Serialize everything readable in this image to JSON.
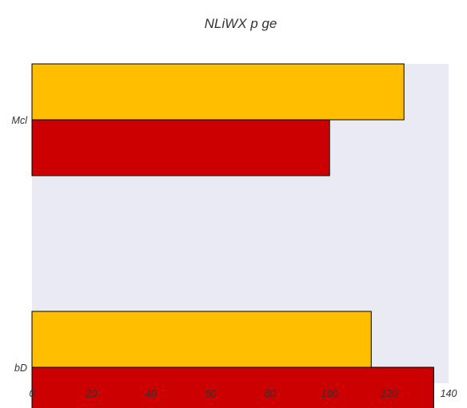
{
  "chart_data": {
    "type": "bar",
    "orientation": "horizontal",
    "title": "NLiWX p ge",
    "xlabel": "",
    "ylabel": "",
    "categories": [
      "Mcl",
      "bD"
    ],
    "series": [
      {
        "values": [
          125,
          114
        ],
        "color": "#FFBF00"
      },
      {
        "values": [
          100,
          135
        ],
        "color": "#CC0000"
      }
    ],
    "xlim": [
      0,
      140
    ],
    "xticks": [
      0,
      20,
      40,
      60,
      80,
      100,
      120,
      140
    ],
    "grid": false,
    "legend": "none",
    "background_color": "#EAEAF2",
    "bar_edge_color": "#000000"
  }
}
